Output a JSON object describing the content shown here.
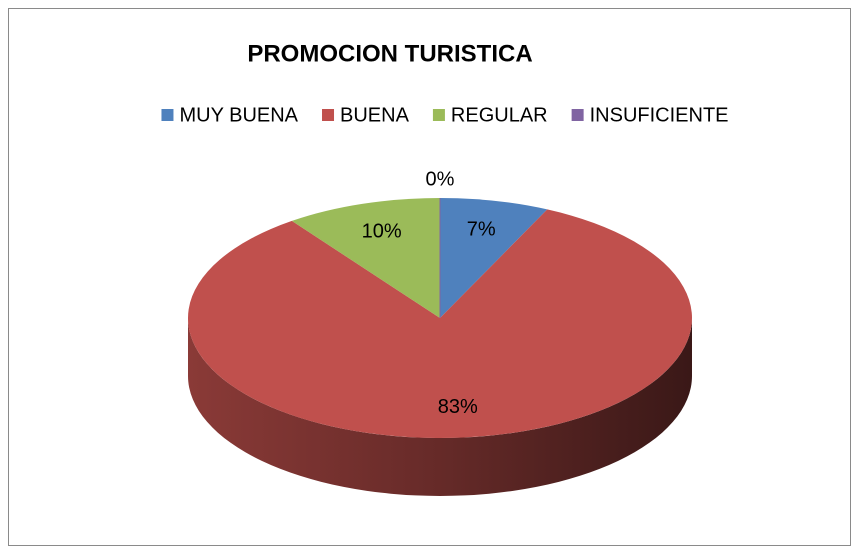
{
  "chart_data": {
    "type": "pie3d",
    "title": "PROMOCION TURISTICA",
    "categories": [
      "MUY BUENA",
      "BUENA",
      "REGULAR",
      "INSUFICIENTE"
    ],
    "values": [
      7,
      83,
      10,
      0
    ],
    "value_labels": [
      "7%",
      "83%",
      "10%",
      "0%"
    ],
    "colors": [
      "#4f81bd",
      "#c0504d",
      "#9bbb59",
      "#8064a2"
    ],
    "legend": "top"
  }
}
